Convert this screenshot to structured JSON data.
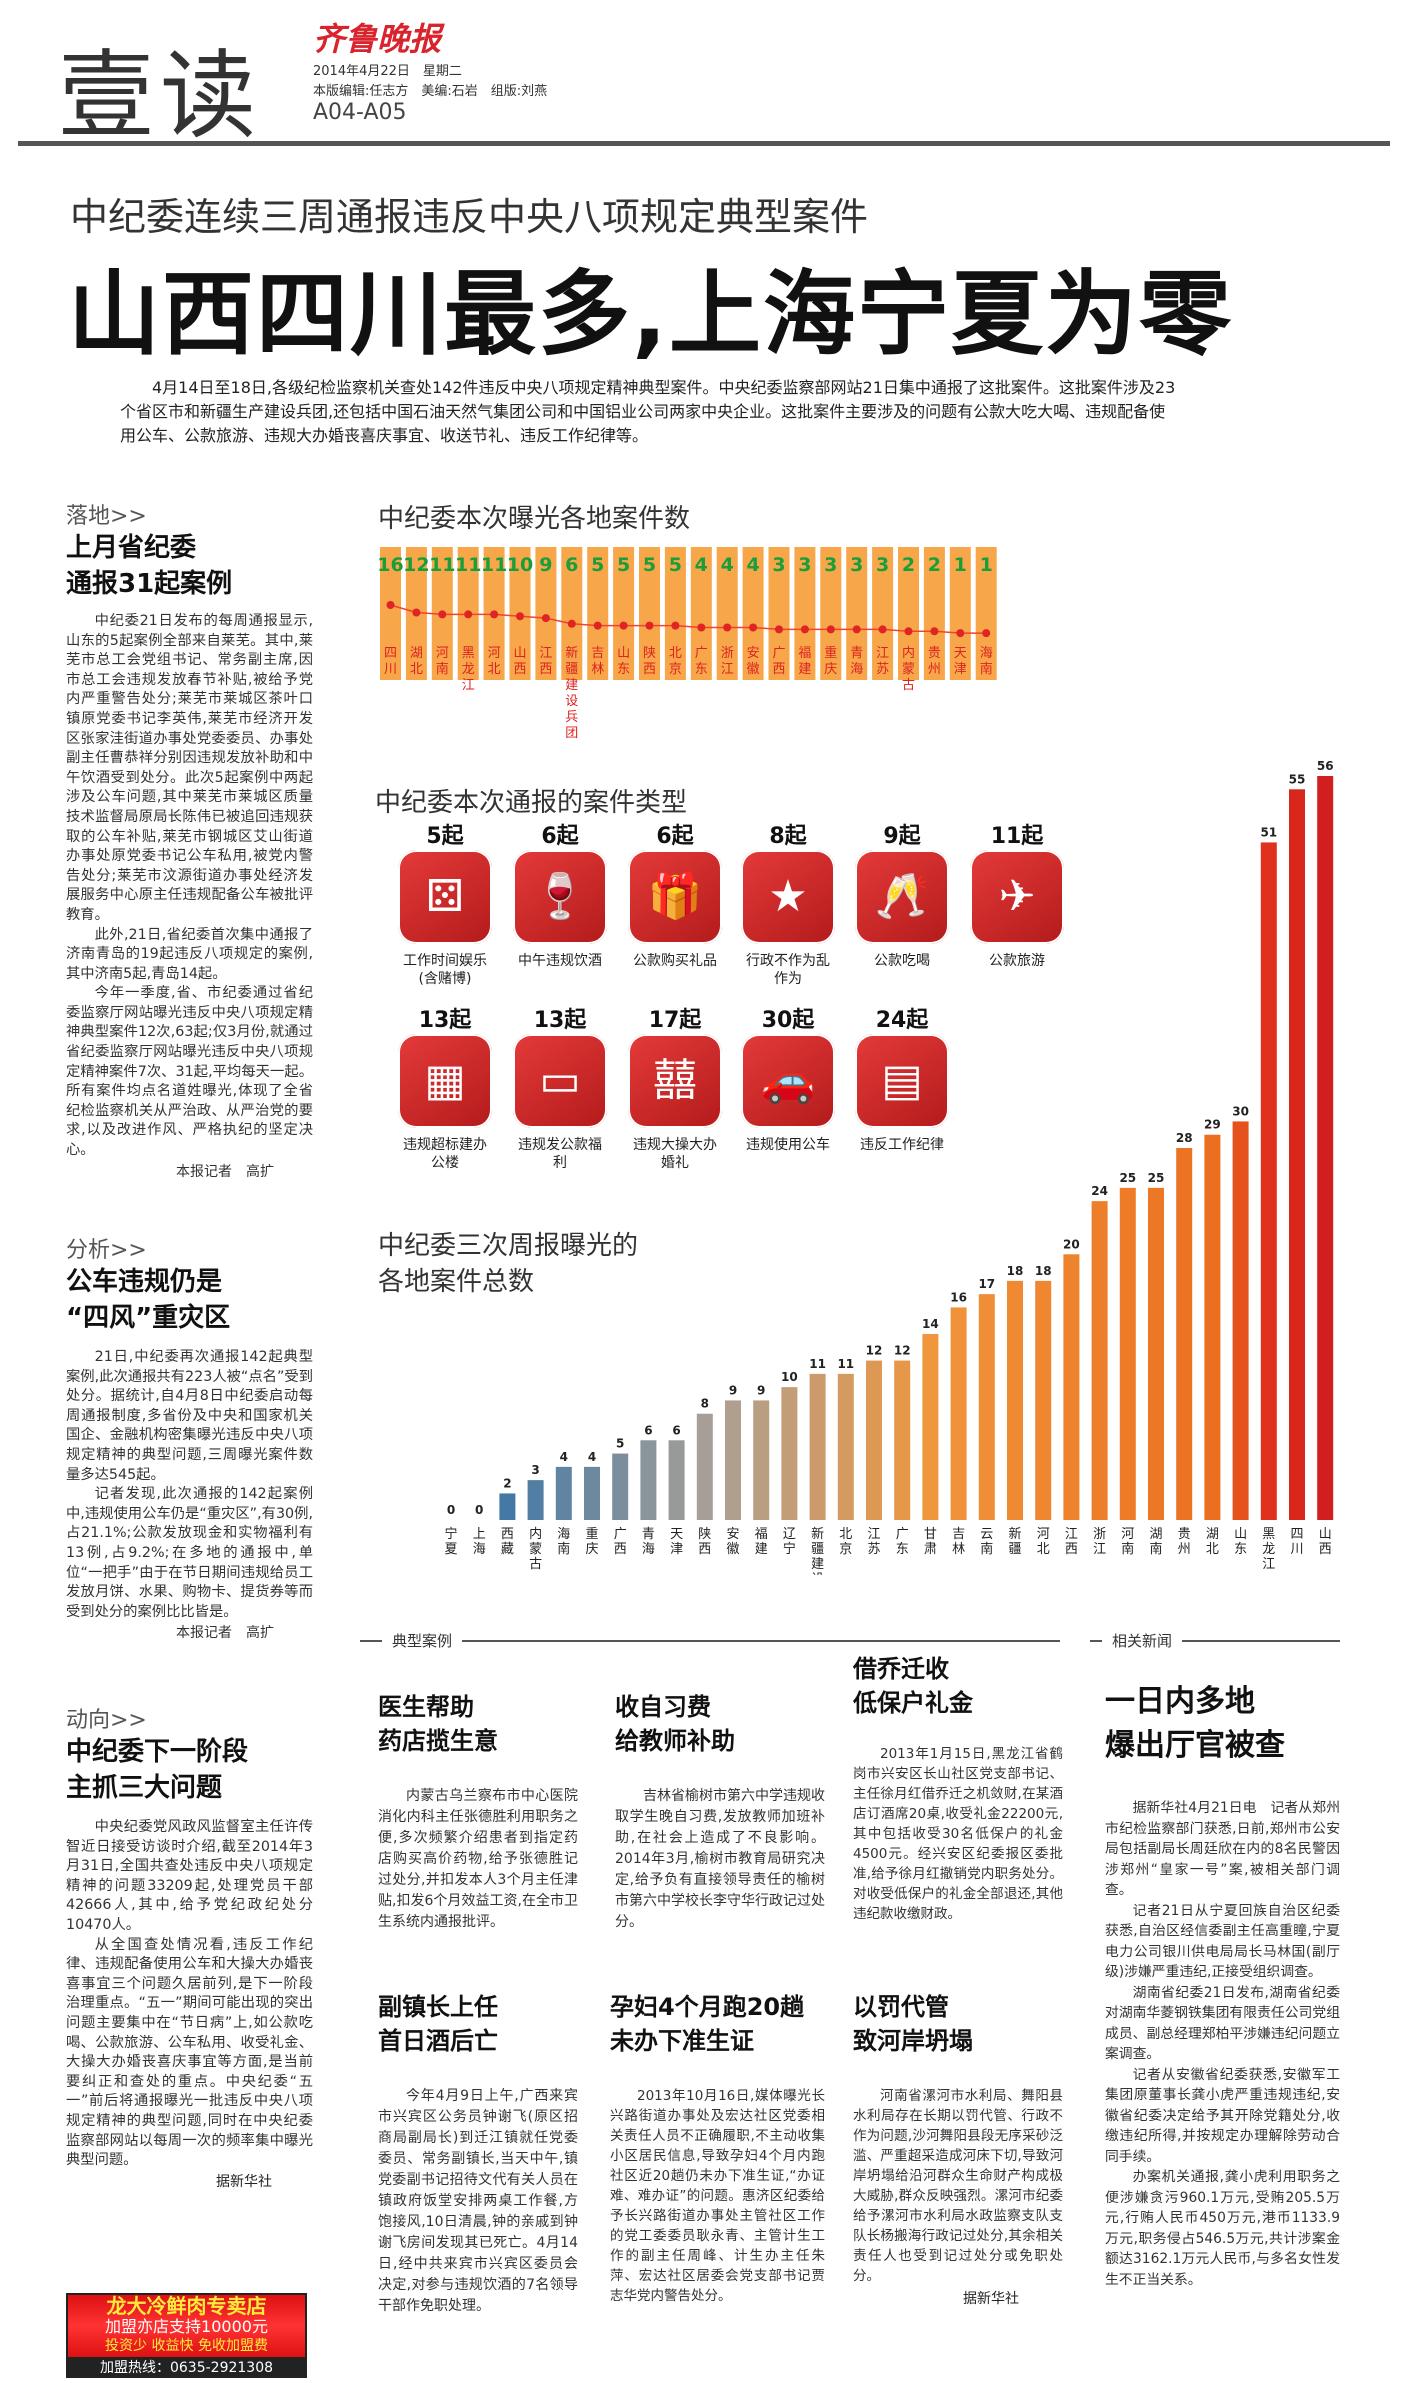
{
  "masthead": {
    "section": "壹读",
    "logo": "齐鲁晚报",
    "date": "2014年4月22日　星期二",
    "staff": "本版编辑:任志方　美编:石岩　组版:刘燕",
    "pages": "A04-A05"
  },
  "headline": {
    "sub": "中纪委连续三周通报违反中央八项规定典型案件",
    "main": "山西四川最多,上海宁夏为零"
  },
  "intro": "4月14日至18日,各级纪检监察机关查处142件违反中央八项规定精神典型案件。中央纪委监察部网站21日集中通报了这批案件。这批案件涉及23个省区市和新疆生产建设兵团,还包括中国石油天然气集团公司和中国铝业公司两家中央企业。这批案件主要涉及的问题有公款大吃大喝、违规配备使用公车、公款旅游、违规大办婚丧喜庆事宜、收送节礼、违反工作纪律等。",
  "left": {
    "s1": {
      "tag": "落地>>",
      "title1": "上月省纪委",
      "title2": "通报31起案例",
      "p1": "中纪委21日发布的每周通报显示,山东的5起案例全部来自莱芜。其中,莱芜市总工会党组书记、常务副主席,因市总工会违规发放春节补贴,被给予党内严重警告处分;莱芜市莱城区茶叶口镇原党委书记李英伟,莱芜市经济开发区张家洼街道办事处党委委员、办事处副主任曹恭祥分别因违规发放补助和中午饮酒受到处分。此次5起案例中两起涉及公车问题,其中莱芜市莱城区质量技术监督局原局长陈伟已被追回违规获取的公车补贴,莱芜市钢城区艾山街道办事处原党委书记公车私用,被党内警告处分;莱芜市汶源街道办事处经济发展服务中心原主任违规配备公车被批评教育。",
      "p2": "此外,21日,省纪委首次集中通报了济南青岛的19起违反八项规定的案例,其中济南5起,青岛14起。",
      "p3": "今年一季度,省、市纪委通过省纪委监察厅网站曝光违反中央八项规定精神典型案件12次,63起;仅3月份,就通过省纪委监察厅网站曝光违反中央八项规定精神案件7次、31起,平均每天一起。所有案件均点名道姓曝光,体现了全省纪检监察机关从严治政、从严治党的要求,以及改进作风、严格执纪的坚定决心。",
      "reporter": "本报记者　高扩"
    },
    "s2": {
      "tag": "分析>>",
      "title1": "公车违规仍是",
      "title2": "“四风”重灾区",
      "p1": "21日,中纪委再次通报142起典型案例,此次通报共有223人被“点名”受到处分。据统计,自4月8日中纪委启动每周通报制度,多省份及中央和国家机关国企、金融机构密集曝光违反中央八项规定精神的典型问题,三周曝光案件数量多达545起。",
      "p2": "记者发现,此次通报的142起案例中,违规使用公车仍是“重灾区”,有30例,占21.1%;公款发放现金和实物福利有13例,占9.2%;在多地的通报中,单位“一把手”由于在节日期间违规给员工发放月饼、水果、购物卡、提货券等而受到处分的案例比比皆是。",
      "reporter": "本报记者　高扩"
    },
    "s3": {
      "tag": "动向>>",
      "title1": "中纪委下一阶段",
      "title2": "主抓三大问题",
      "p1": "中央纪委党风政风监督室主任许传智近日接受访谈时介绍,截至2014年3月31日,全国共查处违反中央八项规定精神的问题33209起,处理党员干部42666人,其中,给予党纪政纪处分10470人。",
      "p2": "从全国查处情况看,违反工作纪律、违规配备使用公车和大操大办婚丧喜事宜三个问题久居前列,是下一阶段治理重点。“五一”期间可能出现的突出问题主要集中在“节日病”上,如公款吃喝、公款旅游、公车私用、收受礼金、大操大办婚丧喜庆事宜等方面,是当前要纠正和查处的重点。中央纪委“五一”前后将通报曝光一批违反中央八项规定精神的典型问题,同时在中央纪委监察部网站以每周一次的频率集中曝光典型问题。",
      "source": "据新华社"
    },
    "ad": {
      "l1": "龙大冷鲜肉专卖店",
      "l2": "加盟亦店支持10000元",
      "l3": "投资少 收益快 免收加盟费",
      "hotline": "加盟热线：0635-2921308"
    }
  },
  "chart_data": [
    {
      "type": "bar",
      "title": "中纪委本次曝光各地案件数",
      "categories": [
        "四川",
        "湖北",
        "河南",
        "黑龙江",
        "河北",
        "山西",
        "江西",
        "新疆建设兵团",
        "吉林",
        "山东",
        "陕西",
        "北京",
        "广东",
        "浙江",
        "安徽",
        "广西",
        "福建",
        "重庆",
        "青海",
        "江苏",
        "内蒙古",
        "贵州",
        "天津",
        "海南"
      ],
      "values": [
        16,
        12,
        11,
        11,
        11,
        10,
        9,
        6,
        5,
        5,
        5,
        5,
        4,
        4,
        4,
        3,
        3,
        3,
        3,
        3,
        2,
        2,
        1,
        1
      ],
      "ylim": [
        0,
        16
      ]
    },
    {
      "type": "table",
      "title": "中纪委本次通报的案件类型",
      "items": [
        {
          "count": "5起",
          "label": "工作时间娱乐(含赌博)",
          "icon": "dice-icon"
        },
        {
          "count": "6起",
          "label": "中午违规饮酒",
          "icon": "wine-bottles-icon"
        },
        {
          "count": "6起",
          "label": "公款购买礼品",
          "icon": "gift-box-icon"
        },
        {
          "count": "8起",
          "label": "行政不作为乱作为",
          "icon": "badge-icon"
        },
        {
          "count": "9起",
          "label": "公款吃喝",
          "icon": "wine-glasses-icon"
        },
        {
          "count": "11起",
          "label": "公款旅游",
          "icon": "airplane-icon"
        },
        {
          "count": "13起",
          "label": "违规超标建办公楼",
          "icon": "building-icon"
        },
        {
          "count": "13起",
          "label": "违规发公款福利",
          "icon": "banknote-icon"
        },
        {
          "count": "17起",
          "label": "违规大操大办婚礼",
          "icon": "double-happiness-icon"
        },
        {
          "count": "30起",
          "label": "违规使用公车",
          "icon": "car-icon"
        },
        {
          "count": "24起",
          "label": "违反工作纪律",
          "icon": "rules-book-icon"
        }
      ]
    },
    {
      "type": "bar",
      "title": "中纪委三次周报曝光的各地案件总数",
      "title_l1": "中纪委三次周报曝光的",
      "title_l2": "各地案件总数",
      "categories": [
        "宁夏",
        "上海",
        "西藏",
        "内蒙古",
        "海南",
        "重庆",
        "广西",
        "青海",
        "天津",
        "陕西",
        "安徽",
        "福建",
        "辽宁",
        "新疆建设兵团",
        "北京",
        "江苏",
        "广东",
        "甘肃",
        "吉林",
        "云南",
        "新疆",
        "河北",
        "江西",
        "浙江",
        "河南",
        "湖南",
        "贵州",
        "湖北",
        "山东",
        "黑龙江",
        "四川",
        "山西"
      ],
      "values": [
        0,
        0,
        2,
        3,
        4,
        4,
        5,
        6,
        6,
        8,
        9,
        9,
        10,
        11,
        11,
        12,
        12,
        14,
        16,
        17,
        18,
        18,
        20,
        24,
        25,
        25,
        28,
        29,
        30,
        51,
        55,
        56
      ],
      "ylim": [
        0,
        56
      ]
    }
  ],
  "bottom": {
    "box_tag": "典型案例",
    "related_tag": "相关新闻",
    "c1": {
      "t1": "医生帮助",
      "t2": "药店揽生意",
      "text": "内蒙古乌兰察布市中心医院消化内科主任张德胜利用职务之便,多次频繁介绍患者到指定药店购买高价药物,给予张德胜记过处分,并扣发本人3个月主任津贴,扣发6个月效益工资,在全市卫生系统内通报批评。"
    },
    "c2": {
      "t1": "收自习费",
      "t2": "给教师补助",
      "text": "吉林省榆树市第六中学违规收取学生晚自习费,发放教师加班补助,在社会上造成了不良影响。2014年3月,榆树市教育局研究决定,给予负有直接领导责任的榆树市第六中学校长李守华行政记过处分。"
    },
    "c3": {
      "t1": "借乔迁收",
      "t2": "低保户礼金",
      "text": "2013年1月15日,黑龙江省鹤岗市兴安区长山社区党支部书记、主任徐月红借乔迁之机敛财,在某酒店订酒席20桌,收受礼金22200元,其中包括收受30名低保户的礼金4500元。经兴安区纪委报区委批准,给予徐月红撤销党内职务处分。对收受低保户的礼金全部退还,其他违纪款收缴财政。"
    },
    "c4": {
      "t1": "副镇长上任",
      "t2": "首日酒后亡",
      "text": "今年4月9日上午,广西来宾市兴宾区公务员钟谢飞(原区招商局副局长)到迁江镇就任党委委员、常务副镇长,当天中午,镇党委副书记招待文代有关人员在镇政府饭堂安排两桌工作餐,方饱接风,10日清晨,钟的亲戚到钟谢飞房间发现其已死亡。4月14日,经中共来宾市兴宾区委员会决定,对参与违规饮酒的7名领导干部作免职处理。"
    },
    "c5": {
      "t1": "孕妇4个月跑20趟",
      "t2": "未办下准生证",
      "text": "2013年10月16日,媒体曝光长兴路街道办事处及宏达社区党委相关责任人员不正确履职,不主动收集小区居民信息,导致孕妇4个月内跑社区近20趟仍未办下准生证,“办证难、难办证”的问题。惠济区纪委给予长兴路街道办事处主管社区工作的党工委委员耿永青、主管计生工作的副主任周峰、计生办主任朱萍、宏达社区居委会党支部书记贾志华党内警告处分。"
    },
    "c6": {
      "t1": "以罚代管",
      "t2": "致河岸坍塌",
      "text": "河南省漯河市水利局、舞阳县水利局存在长期以罚代管、行政不作为问题,沙河舞阳县段无序采砂泛滥、严重超采造成河床下切,导致河岸坍塌给沿河群众生命财产构成极大威胁,群众反映强烈。漯河市纪委给予漯河市水利局水政监察支队支队长杨搬海行政记过处分,其余相关责任人也受到记过处分或免职处分。",
      "source": "据新华社"
    },
    "news": {
      "t1": "一日内多地",
      "t2": "爆出厅官被查",
      "p1": "据新华社4月21日电　记者从郑州市纪检监察部门获悉,日前,郑州市公安局包括副局长周廷欣在内的8名民警因涉郑州“皇家一号”案,被相关部门调查。",
      "p2": "记者21日从宁夏回族自治区纪委获悉,自治区经信委副主任高重瞳,宁夏电力公司银川供电局局长马林国(副厅级)涉嫌严重违纪,正接受组织调查。",
      "p3": "湖南省纪委21日发布,湖南省纪委对湖南华菱钢铁集团有限责任公司党组成员、副总经理郑柏平涉嫌违纪问题立案调查。",
      "p4": "记者从安徽省纪委获悉,安徽军工集团原董事长龚小虎严重违规违纪,安徽省纪委决定给予其开除党籍处分,收缴违纪所得,并按规定办理解除劳动合同手续。",
      "p5": "办案机关通报,龚小虎利用职务之便涉嫌贪污960.1万元,受贿205.5万元,行贿人民币450万元,港币1133.9万元,职务侵占546.5万元,共计涉案金额达3162.1万元人民币,与多名女性发生不正当关系。"
    }
  }
}
